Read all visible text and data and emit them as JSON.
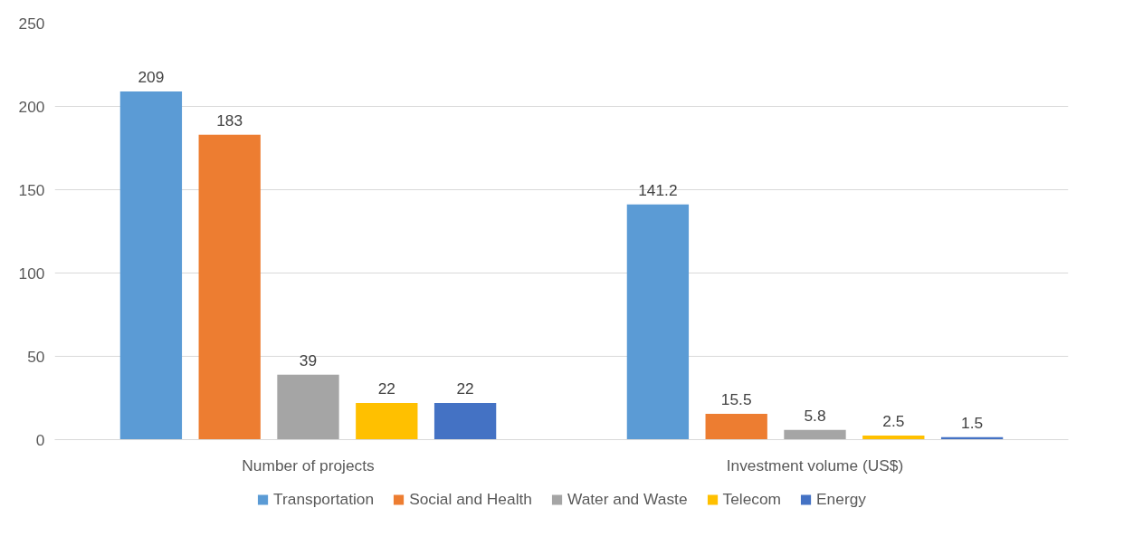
{
  "chart_data": {
    "type": "bar",
    "categories": [
      "Number of projects",
      "Investment volume (US$)"
    ],
    "series": [
      {
        "name": "Transportation",
        "color": "#5b9bd5",
        "values": [
          209,
          141.2
        ]
      },
      {
        "name": "Social and Health",
        "color": "#ed7d31",
        "values": [
          183,
          15.5
        ]
      },
      {
        "name": "Water and Waste",
        "color": "#a5a5a5",
        "values": [
          39,
          5.8
        ]
      },
      {
        "name": "Telecom",
        "color": "#ffc000",
        "values": [
          22,
          2.5
        ]
      },
      {
        "name": "Energy",
        "color": "#4472c4",
        "values": [
          22,
          1.5
        ]
      }
    ],
    "ylim": [
      0,
      250
    ],
    "yticks": [
      0,
      50,
      100,
      150,
      200,
      250
    ],
    "grid": "y",
    "legend": "bottom",
    "data_labels": true
  }
}
